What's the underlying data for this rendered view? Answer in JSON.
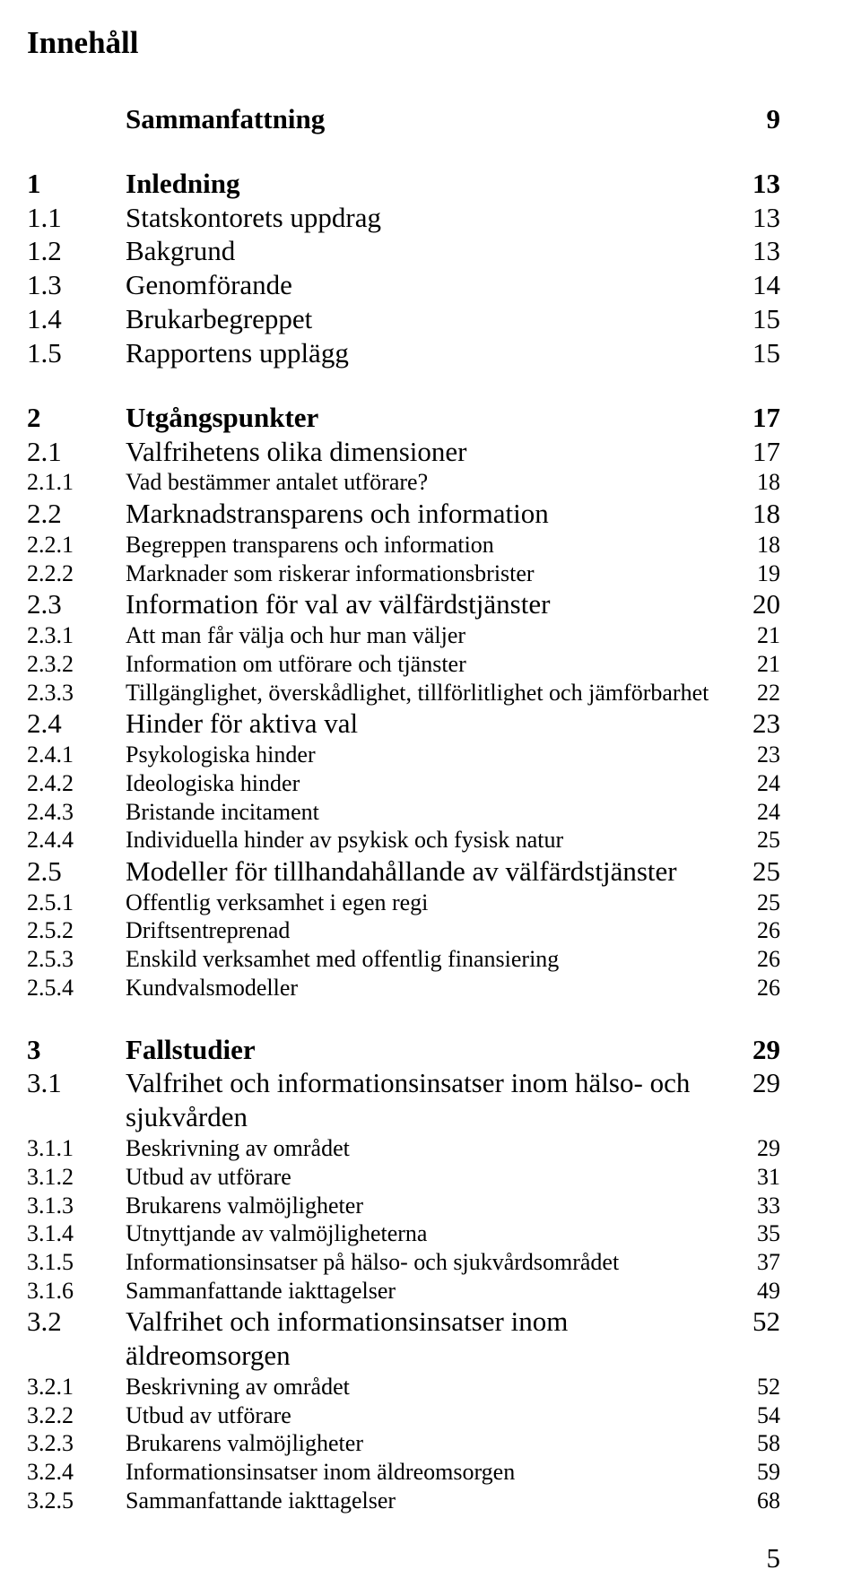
{
  "documentTitle": "Innehåll",
  "pageNumber": "5",
  "toc": [
    {
      "num": "",
      "title": "Sammanfattning",
      "page": "9",
      "level": 1,
      "group": true
    },
    {
      "num": "1",
      "title": "Inledning",
      "page": "13",
      "level": 1,
      "group": true
    },
    {
      "num": "1.1",
      "title": "Statskontorets uppdrag",
      "page": "13",
      "level": 2
    },
    {
      "num": "1.2",
      "title": "Bakgrund",
      "page": "13",
      "level": 2
    },
    {
      "num": "1.3",
      "title": "Genomförande",
      "page": "14",
      "level": 2
    },
    {
      "num": "1.4",
      "title": "Brukarbegreppet",
      "page": "15",
      "level": 2
    },
    {
      "num": "1.5",
      "title": "Rapportens upplägg",
      "page": "15",
      "level": 2
    },
    {
      "num": "2",
      "title": "Utgångspunkter",
      "page": "17",
      "level": 1,
      "group": true
    },
    {
      "num": "2.1",
      "title": "Valfrihetens olika dimensioner",
      "page": "17",
      "level": 2
    },
    {
      "num": "2.1.1",
      "title": "Vad bestämmer antalet utförare?",
      "page": "18",
      "level": 3
    },
    {
      "num": "2.2",
      "title": "Marknadstransparens och information",
      "page": "18",
      "level": 2
    },
    {
      "num": "2.2.1",
      "title": "Begreppen transparens och information",
      "page": "18",
      "level": 3
    },
    {
      "num": "2.2.2",
      "title": "Marknader som riskerar informationsbrister",
      "page": "19",
      "level": 3
    },
    {
      "num": "2.3",
      "title": "Information för val av välfärdstjänster",
      "page": "20",
      "level": 2
    },
    {
      "num": "2.3.1",
      "title": "Att man får välja och hur man väljer",
      "page": "21",
      "level": 3
    },
    {
      "num": "2.3.2",
      "title": "Information om utförare och tjänster",
      "page": "21",
      "level": 3
    },
    {
      "num": "2.3.3",
      "title": "Tillgänglighet, överskådlighet, tillförlitlighet och jämförbarhet",
      "page": "22",
      "level": 3
    },
    {
      "num": "2.4",
      "title": "Hinder för aktiva val",
      "page": "23",
      "level": 2
    },
    {
      "num": "2.4.1",
      "title": "Psykologiska hinder",
      "page": "23",
      "level": 3
    },
    {
      "num": "2.4.2",
      "title": "Ideologiska hinder",
      "page": "24",
      "level": 3
    },
    {
      "num": "2.4.3",
      "title": "Bristande incitament",
      "page": "24",
      "level": 3
    },
    {
      "num": "2.4.4",
      "title": "Individuella hinder av psykisk och fysisk natur",
      "page": "25",
      "level": 3
    },
    {
      "num": "2.5",
      "title": "Modeller för tillhandahållande av välfärdstjänster",
      "page": "25",
      "level": 2
    },
    {
      "num": "2.5.1",
      "title": "Offentlig verksamhet i egen regi",
      "page": "25",
      "level": 3
    },
    {
      "num": "2.5.2",
      "title": "Driftsentreprenad",
      "page": "26",
      "level": 3
    },
    {
      "num": "2.5.3",
      "title": "Enskild verksamhet med offentlig finansiering",
      "page": "26",
      "level": 3
    },
    {
      "num": "2.5.4",
      "title": "Kundvalsmodeller",
      "page": "26",
      "level": 3
    },
    {
      "num": "3",
      "title": "Fallstudier",
      "page": "29",
      "level": 1,
      "group": true
    },
    {
      "num": "3.1",
      "title": "Valfrihet och informationsinsatser inom hälso- och sjukvården",
      "page": "29",
      "level": 2
    },
    {
      "num": "3.1.1",
      "title": "Beskrivning av området",
      "page": "29",
      "level": 3
    },
    {
      "num": "3.1.2",
      "title": "Utbud av utförare",
      "page": "31",
      "level": 3
    },
    {
      "num": "3.1.3",
      "title": "Brukarens valmöjligheter",
      "page": "33",
      "level": 3
    },
    {
      "num": "3.1.4",
      "title": "Utnyttjande av valmöjligheterna",
      "page": "35",
      "level": 3
    },
    {
      "num": "3.1.5",
      "title": "Informationsinsatser på hälso- och sjukvårdsområdet",
      "page": "37",
      "level": 3
    },
    {
      "num": "3.1.6",
      "title": "Sammanfattande iakttagelser",
      "page": "49",
      "level": 3
    },
    {
      "num": "3.2",
      "title": "Valfrihet och informationsinsatser inom äldreomsorgen",
      "page": "52",
      "level": 2
    },
    {
      "num": "3.2.1",
      "title": "Beskrivning av området",
      "page": "52",
      "level": 3
    },
    {
      "num": "3.2.2",
      "title": "Utbud av utförare",
      "page": "54",
      "level": 3
    },
    {
      "num": "3.2.3",
      "title": "Brukarens valmöjligheter",
      "page": "58",
      "level": 3
    },
    {
      "num": "3.2.4",
      "title": "Informationsinsatser inom äldreomsorgen",
      "page": "59",
      "level": 3
    },
    {
      "num": "3.2.5",
      "title": "Sammanfattande iakttagelser",
      "page": "68",
      "level": 3
    }
  ]
}
